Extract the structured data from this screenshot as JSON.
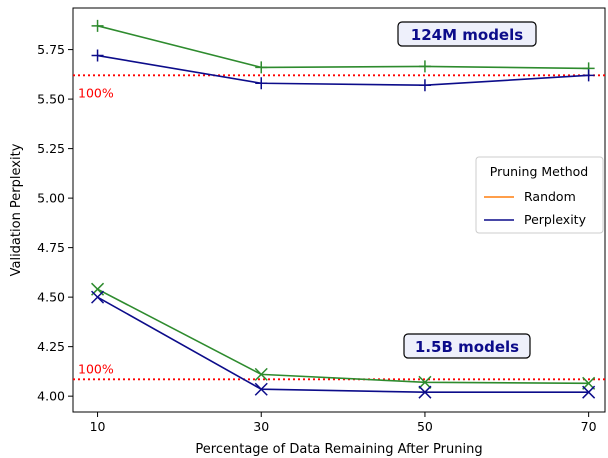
{
  "chart_data": {
    "type": "line",
    "xlabel": "Percentage of Data Remaining After Pruning",
    "ylabel": "Validation Perplexity",
    "x_ticks": [
      10,
      30,
      50,
      70
    ],
    "y_ticks": [
      4.0,
      4.25,
      4.5,
      4.75,
      5.0,
      5.25,
      5.5,
      5.75
    ],
    "xlim": [
      7,
      72
    ],
    "ylim": [
      3.92,
      5.96
    ],
    "grid": false,
    "legend": {
      "title": "Pruning Method",
      "placement": "right",
      "entries": [
        {
          "label": "Random",
          "color": "#ff7f0e"
        },
        {
          "label": "Perplexity",
          "color": "#0c0c8a"
        }
      ]
    },
    "groups": [
      {
        "label": "124M models",
        "marker": "plus",
        "baseline": 5.62,
        "baseline_label": "100%",
        "series": [
          {
            "color": "#2e8b2e",
            "x": [
              10,
              30,
              50,
              70
            ],
            "y": [
              5.87,
              5.66,
              5.665,
              5.655
            ]
          },
          {
            "color": "#0c0c8a",
            "x": [
              10,
              30,
              50,
              70
            ],
            "y": [
              5.72,
              5.58,
              5.57,
              5.62
            ]
          }
        ]
      },
      {
        "label": "1.5B models",
        "marker": "x",
        "baseline": 4.085,
        "baseline_label": "100%",
        "series": [
          {
            "color": "#2e8b2e",
            "x": [
              10,
              30,
              50,
              70
            ],
            "y": [
              4.54,
              4.11,
              4.07,
              4.065
            ]
          },
          {
            "color": "#0c0c8a",
            "x": [
              10,
              30,
              50,
              70
            ],
            "y": [
              4.5,
              4.035,
              4.02,
              4.02
            ]
          }
        ]
      }
    ],
    "baseline_color": "#ff0000"
  }
}
